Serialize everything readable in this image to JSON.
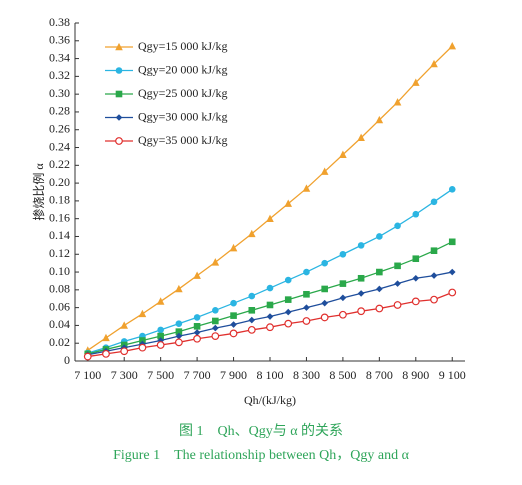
{
  "chart_data": {
    "type": "line",
    "y_label": "掺烧比例 α",
    "x_label": "Qh/(kJ/kg)",
    "x": [
      7100,
      7200,
      7300,
      7400,
      7500,
      7600,
      7700,
      7800,
      7900,
      8000,
      8100,
      8200,
      8300,
      8400,
      8500,
      8600,
      8700,
      8800,
      8900,
      9000,
      9100
    ],
    "xlim": [
      7030,
      9170
    ],
    "xticks": [
      {
        "value": 7100,
        "label": "7 100"
      },
      {
        "value": 7300,
        "label": "7 300"
      },
      {
        "value": 7500,
        "label": "7 500"
      },
      {
        "value": 7700,
        "label": "7 700"
      },
      {
        "value": 7900,
        "label": "7 900"
      },
      {
        "value": 8100,
        "label": "8 100"
      },
      {
        "value": 8300,
        "label": "8 300"
      },
      {
        "value": 8500,
        "label": "8 500"
      },
      {
        "value": 8700,
        "label": "8 700"
      },
      {
        "value": 8900,
        "label": "8 900"
      },
      {
        "value": 9100,
        "label": "9 100"
      }
    ],
    "ylim": [
      0,
      0.38
    ],
    "yticks": [
      0,
      0.02,
      0.04,
      0.06,
      0.08,
      {
        "value": 0.1,
        "label": "0.10"
      },
      0.12,
      0.14,
      0.16,
      0.18,
      {
        "value": 0.2,
        "label": "0.20"
      },
      0.22,
      0.24,
      0.26,
      0.28,
      {
        "value": 0.3,
        "label": "0.30"
      },
      0.32,
      0.34,
      0.36,
      0.38
    ],
    "legend_position": "upper left",
    "series": [
      {
        "name": "Qgy=15 000 kJ/kg",
        "color": "#f0a12e",
        "marker": "triangle",
        "values": [
          0.012,
          0.026,
          0.04,
          0.053,
          0.067,
          0.081,
          0.096,
          0.111,
          0.127,
          0.143,
          0.16,
          0.177,
          0.194,
          0.213,
          0.232,
          0.251,
          0.271,
          0.291,
          0.313,
          0.334,
          0.354
        ]
      },
      {
        "name": "Qgy=20 000 kJ/kg",
        "color": "#2bb5e2",
        "marker": "circle",
        "values": [
          0.009,
          0.015,
          0.022,
          0.028,
          0.035,
          0.042,
          0.049,
          0.057,
          0.065,
          0.073,
          0.082,
          0.091,
          0.1,
          0.11,
          0.12,
          0.13,
          0.14,
          0.152,
          0.165,
          0.179,
          0.193
        ]
      },
      {
        "name": "Qgy=25 000 kJ/kg",
        "color": "#2aa84a",
        "marker": "square",
        "values": [
          0.008,
          0.013,
          0.018,
          0.023,
          0.028,
          0.033,
          0.039,
          0.045,
          0.051,
          0.057,
          0.063,
          0.069,
          0.075,
          0.081,
          0.087,
          0.093,
          0.1,
          0.107,
          0.115,
          0.124,
          0.134
        ]
      },
      {
        "name": "Qgy=30 000 kJ/kg",
        "color": "#1f4e9c",
        "marker": "diamond",
        "values": [
          0.007,
          0.011,
          0.015,
          0.019,
          0.023,
          0.028,
          0.032,
          0.037,
          0.041,
          0.046,
          0.05,
          0.055,
          0.06,
          0.065,
          0.071,
          0.076,
          0.081,
          0.087,
          0.093,
          0.096,
          0.1
        ]
      },
      {
        "name": "Qgy=35 000 kJ/kg",
        "color": "#e0302e",
        "marker": "open-circle",
        "values": [
          0.005,
          0.008,
          0.011,
          0.015,
          0.018,
          0.021,
          0.025,
          0.028,
          0.031,
          0.035,
          0.038,
          0.042,
          0.045,
          0.049,
          0.052,
          0.056,
          0.059,
          0.063,
          0.067,
          0.069,
          0.077
        ]
      }
    ]
  },
  "caption_zh": "图 1　Qh、Qgy与 α 的关系",
  "caption_en": "Figure 1　The relationship between Qh，Qgy and α"
}
